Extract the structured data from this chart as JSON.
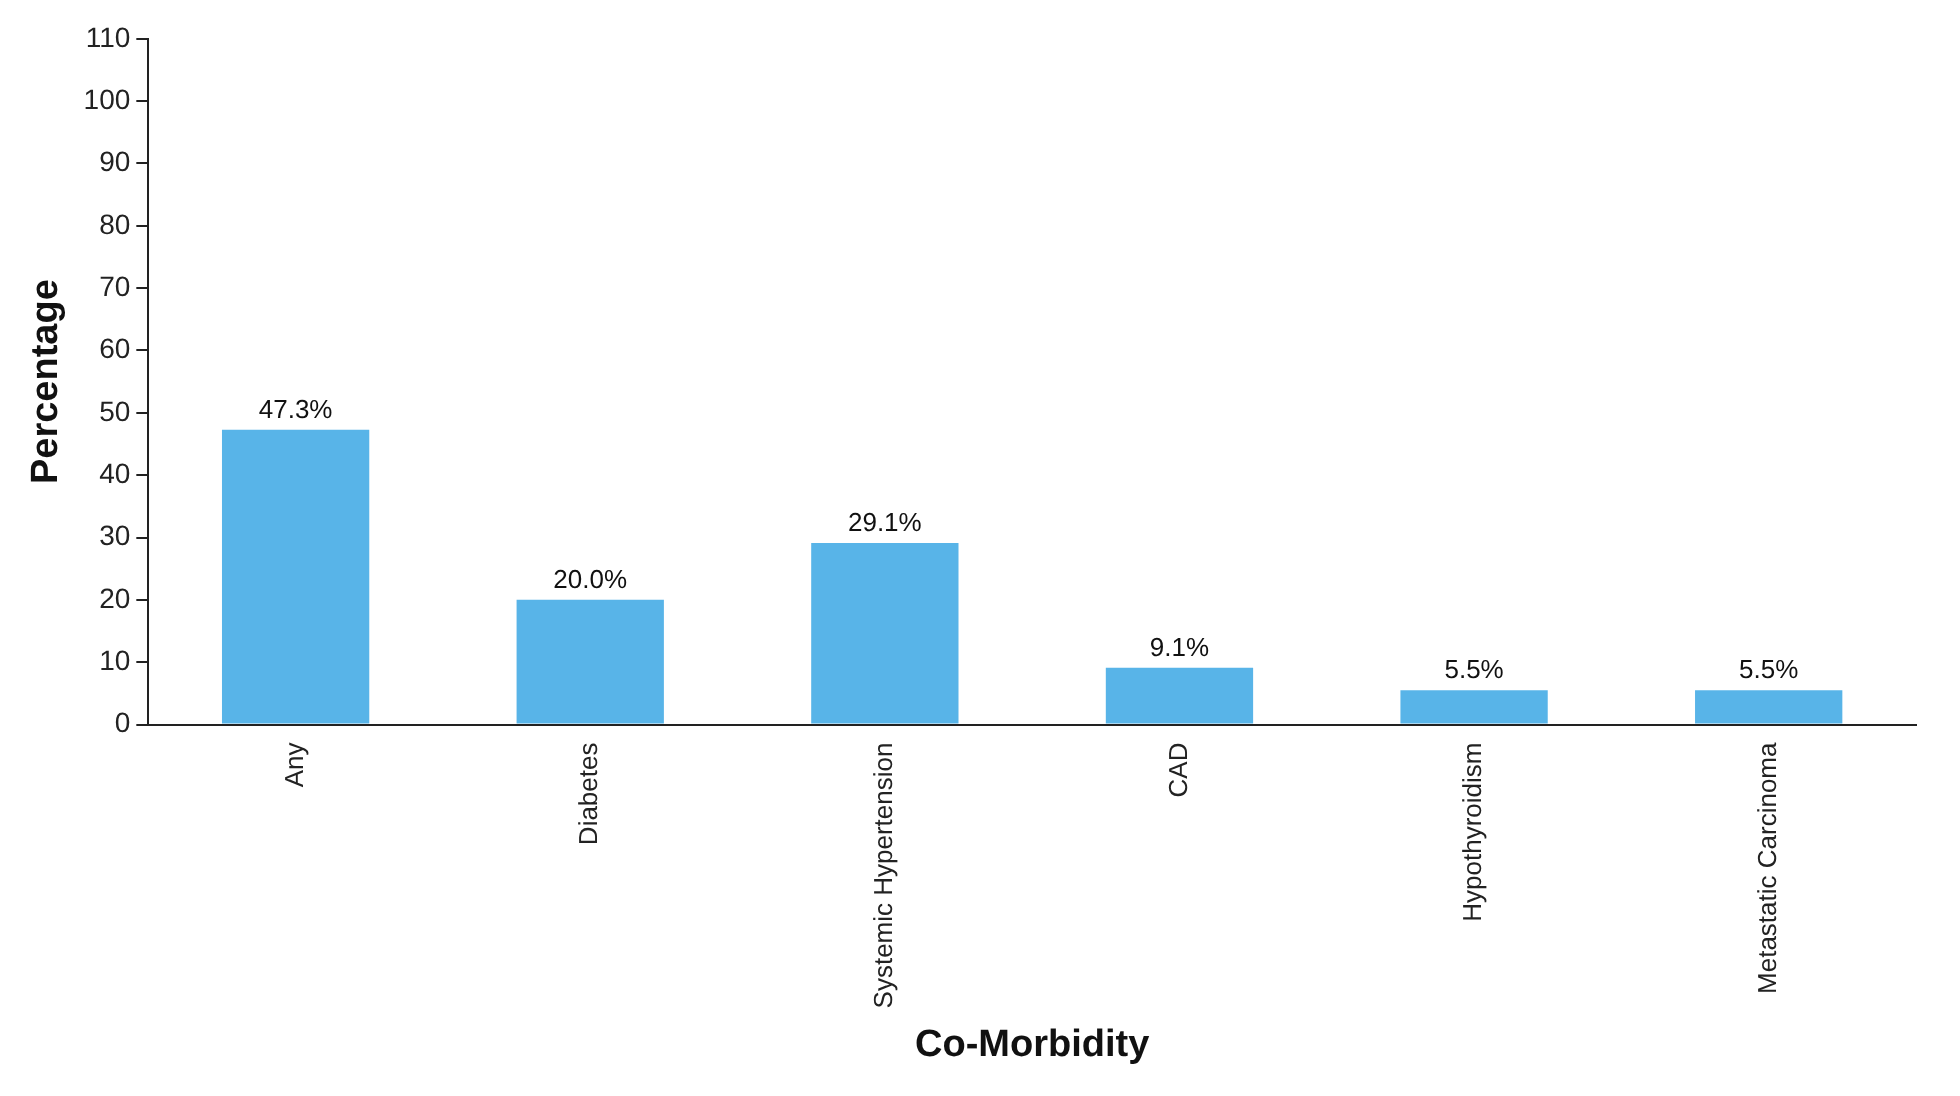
{
  "chart_data": {
    "type": "bar",
    "xlabel": "Co-Morbidity",
    "ylabel": "Percentage",
    "categories": [
      "Any",
      "Diabetes",
      "Systemic Hypertension",
      "CAD",
      "Hypothyroidism",
      "Metastatic Carcinoma"
    ],
    "values": [
      47.3,
      20.0,
      29.1,
      9.1,
      5.5,
      5.5
    ],
    "value_labels": [
      "47.3%",
      "20.0%",
      "29.1%",
      "9.1%",
      "5.5%",
      "5.5%"
    ],
    "color": "#58b4e8",
    "ylim": [
      0,
      110
    ],
    "yticks": [
      0,
      10,
      20,
      30,
      40,
      50,
      60,
      70,
      80,
      90,
      100,
      110
    ],
    "grid": false,
    "legend": false
  }
}
